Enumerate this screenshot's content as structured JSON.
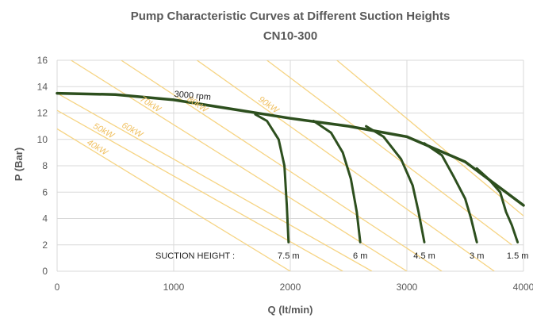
{
  "chart_data": {
    "type": "line",
    "title": "Pump Characteristic Curves at Different Suction Heights",
    "subtitle": "CN10-300",
    "xlabel": "Q (lt/min)",
    "ylabel": "P (Bar)",
    "xlim": [
      0,
      4000
    ],
    "ylim": [
      0,
      16
    ],
    "xticks": [
      0,
      1000,
      2000,
      3000,
      4000
    ],
    "yticks": [
      0,
      2,
      4,
      6,
      8,
      10,
      12,
      14,
      16
    ],
    "grid": true,
    "colors": {
      "curve": "#2d4f1e",
      "power_lines": "#f6d483",
      "power_text": "#f0c060",
      "grid": "#d9d9d9",
      "text": "#595959"
    },
    "main_curve": {
      "label": "3000 rpm",
      "x": [
        0,
        500,
        1000,
        1500,
        2000,
        2500,
        3000,
        3500,
        4000
      ],
      "y": [
        13.5,
        13.4,
        13.0,
        12.3,
        11.6,
        11.0,
        10.2,
        8.3,
        5.0
      ]
    },
    "suction_curves": [
      {
        "name": "7.5 m",
        "x": [
          1700,
          1800,
          1900,
          1950,
          1970,
          1985
        ],
        "y": [
          11.9,
          11.4,
          10.0,
          8.0,
          5.0,
          2.2
        ]
      },
      {
        "name": "6 m",
        "x": [
          2200,
          2350,
          2450,
          2520,
          2570,
          2600
        ],
        "y": [
          11.4,
          10.5,
          9.0,
          7.0,
          4.5,
          2.2
        ]
      },
      {
        "name": "4.5 m",
        "x": [
          2650,
          2800,
          2950,
          3050,
          3100,
          3150
        ],
        "y": [
          11.0,
          10.2,
          8.5,
          6.5,
          4.5,
          2.2
        ]
      },
      {
        "name": "3 m",
        "x": [
          3150,
          3300,
          3400,
          3500,
          3550,
          3600
        ],
        "y": [
          9.7,
          8.8,
          7.2,
          5.5,
          4.0,
          2.2
        ]
      },
      {
        "name": "1.5 m",
        "x": [
          3600,
          3700,
          3800,
          3850,
          3900,
          3950
        ],
        "y": [
          7.8,
          7.0,
          6.0,
          4.5,
          3.5,
          2.2
        ]
      }
    ],
    "power_lines": [
      {
        "name": "40kW",
        "x": [
          0,
          2000
        ],
        "y": [
          10.8,
          0
        ]
      },
      {
        "name": "50kW",
        "x": [
          0,
          2450
        ],
        "y": [
          12.2,
          0
        ]
      },
      {
        "name": "60kW",
        "x": [
          0,
          2700
        ],
        "y": [
          13.5,
          0
        ]
      },
      {
        "name": "70kW",
        "x": [
          120,
          3000
        ],
        "y": [
          16,
          0
        ]
      },
      {
        "name": "80kW",
        "x": [
          550,
          3300
        ],
        "y": [
          16,
          0
        ]
      },
      {
        "name": "90kW",
        "x": [
          1200,
          3750
        ],
        "y": [
          16,
          0
        ]
      },
      {
        "name": "",
        "x": [
          1800,
          3900
        ],
        "y": [
          16,
          2
        ]
      },
      {
        "name": "",
        "x": [
          2400,
          4000
        ],
        "y": [
          16,
          4.2
        ]
      }
    ],
    "annotations": {
      "suction_label": "SUCTION HEIGHT :"
    }
  }
}
